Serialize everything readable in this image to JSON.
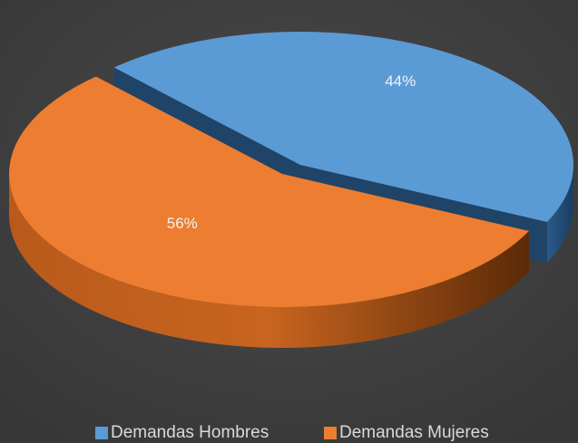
{
  "chart_data": {
    "type": "pie3d",
    "categories": [
      "Demandas Hombres",
      "Demandas Mujeres"
    ],
    "values": [
      44,
      56
    ],
    "value_labels": [
      "44%",
      "56%"
    ],
    "colors": [
      "#5b9bd5",
      "#ed7d31"
    ],
    "legend": "bottom"
  }
}
